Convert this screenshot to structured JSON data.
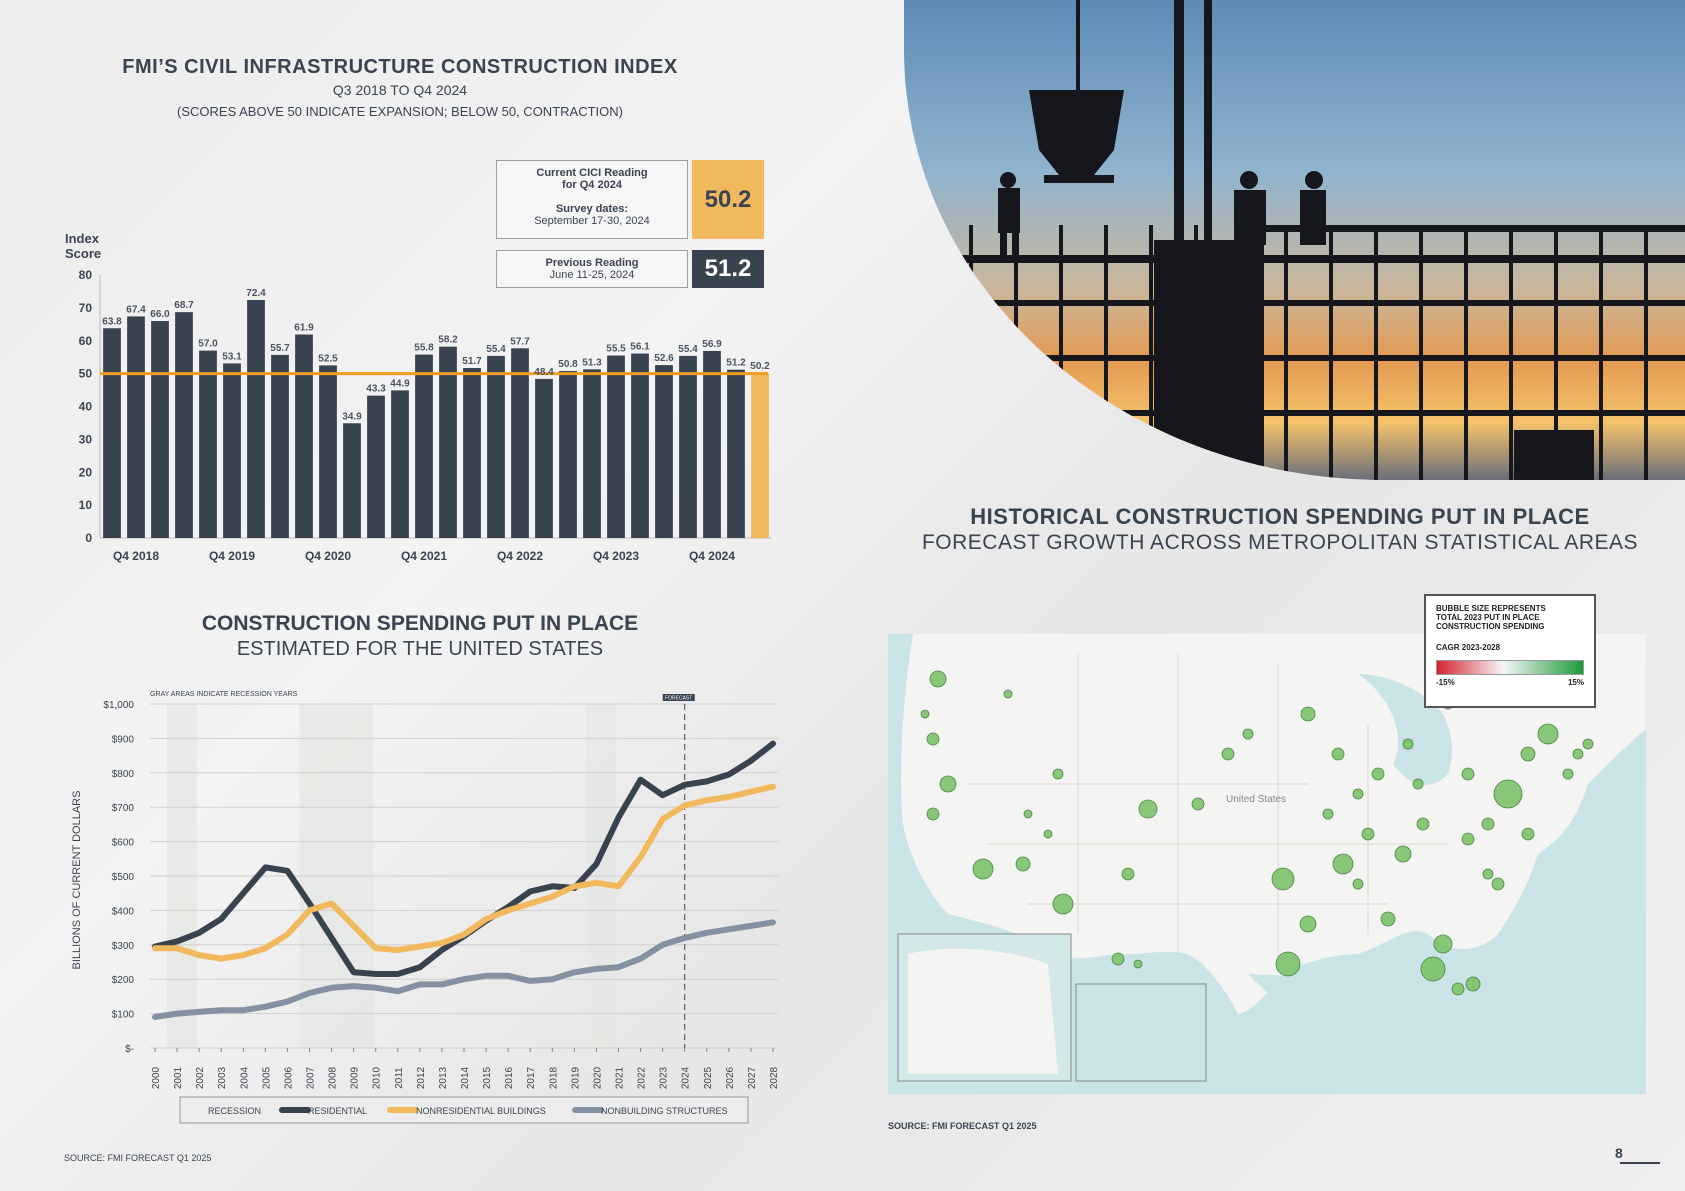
{
  "cici": {
    "title": "FMI’S CIVIL INFRASTRUCTURE CONSTRUCTION INDEX",
    "subtitle": "Q3 2018 TO Q4 2024",
    "note": "(SCORES ABOVE 50 INDICATE EXPANSION; BELOW 50, CONTRACTION)",
    "current": {
      "label_line1": "Current CICI Reading",
      "label_line2": "for Q4 2024",
      "survey_label": "Survey dates:",
      "survey_dates": "September 17-30, 2024",
      "value": "50.2"
    },
    "previous": {
      "label": "Previous Reading",
      "dates": "June 11-25, 2024",
      "value": "51.2"
    }
  },
  "historical": {
    "title": "HISTORICAL CONSTRUCTION SPENDING PUT IN PLACE",
    "subtitle": "FORECAST GROWTH ACROSS METROPOLITAN STATISTICAL AREAS"
  },
  "spending": {
    "title": "CONSTRUCTION SPENDING PUT IN PLACE",
    "subtitle": "ESTIMATED FOR THE UNITED STATES"
  },
  "map": {
    "legend_line1": "BUBBLE SIZE REPRESENTS",
    "legend_line2": "TOTAL 2023 PUT IN PLACE",
    "legend_line3": "CONSTRUCTION SPENDING",
    "cagr_label": "CAGR 2023-2028",
    "min_label": "-15%",
    "max_label": "15%",
    "country_label": "United States",
    "colors": {
      "water": "#c9e3e6",
      "land": "#f4f4f2",
      "bubble": "#7cc36a"
    }
  },
  "sources": {
    "left": "SOURCE: FMI FORECAST Q1 2025",
    "map": "SOURCE: FMI FORECAST Q1 2025"
  },
  "page_number": "8",
  "chart_data": [
    {
      "type": "bar",
      "ylabel": "Index Score",
      "ylim": [
        0,
        80
      ],
      "yticks": [
        0,
        10,
        20,
        30,
        40,
        50,
        60,
        70,
        80
      ],
      "x_tick_labels": [
        "Q4 2018",
        "Q4 2019",
        "Q4 2020",
        "Q4 2021",
        "Q4 2022",
        "Q4 2023",
        "Q4 2024"
      ],
      "x_tick_indices": [
        1,
        5,
        9,
        13,
        17,
        21,
        25
      ],
      "values": [
        63.8,
        67.4,
        66.0,
        68.7,
        57.0,
        53.1,
        72.4,
        55.7,
        61.9,
        52.5,
        34.9,
        43.3,
        44.9,
        55.8,
        58.2,
        51.7,
        55.4,
        57.7,
        48.4,
        50.8,
        51.3,
        55.5,
        56.1,
        52.6,
        55.4,
        56.9,
        51.2,
        50.2
      ],
      "highlight_index": 27,
      "reference_line": 50,
      "colors": {
        "bar": "#394350",
        "highlight": "#f2b85e",
        "reference": "#f39c1f"
      },
      "grid": false
    },
    {
      "type": "line",
      "note": "GRAY AREAS INDICATE RECESSION YEARS",
      "forecast_label": "FORECAST",
      "ylabel": "BILLIONS OF CURRENT DOLLARS",
      "ylim": [
        0,
        1000
      ],
      "y_tick_labels": [
        "$-",
        "$100",
        "$200",
        "$300",
        "$400",
        "$500",
        "$600",
        "$700",
        "$800",
        "$900",
        "$1,000"
      ],
      "x": [
        2000,
        2001,
        2002,
        2003,
        2004,
        2005,
        2006,
        2007,
        2008,
        2009,
        2010,
        2011,
        2012,
        2013,
        2014,
        2015,
        2016,
        2017,
        2018,
        2019,
        2020,
        2021,
        2022,
        2023,
        2024,
        2025,
        2026,
        2027,
        2028
      ],
      "recession_years": [
        [
          2001,
          2001.9
        ],
        [
          2007,
          2009.9
        ],
        [
          2020,
          2020.9
        ]
      ],
      "forecast_start": 2024,
      "series": [
        {
          "name": "RESIDENTIAL",
          "color": "#394350",
          "values": [
            295,
            310,
            335,
            375,
            450,
            525,
            515,
            420,
            320,
            220,
            215,
            215,
            235,
            285,
            325,
            370,
            410,
            455,
            470,
            465,
            535,
            670,
            780,
            735,
            765,
            775,
            795,
            835,
            885
          ]
        },
        {
          "name": "NONRESIDENTIAL BUILDINGS",
          "color": "#f2b85e",
          "values": [
            290,
            290,
            270,
            260,
            270,
            290,
            330,
            400,
            420,
            355,
            290,
            285,
            295,
            305,
            330,
            375,
            400,
            420,
            440,
            470,
            480,
            470,
            555,
            665,
            705,
            720,
            730,
            745,
            760
          ]
        },
        {
          "name": "NONBUILDING STRUCTURES",
          "color": "#8391a0",
          "values": [
            90,
            100,
            105,
            110,
            110,
            120,
            135,
            160,
            175,
            180,
            175,
            165,
            185,
            185,
            200,
            210,
            210,
            195,
            200,
            220,
            230,
            235,
            260,
            300,
            320,
            335,
            345,
            355,
            365
          ]
        }
      ],
      "legend": [
        "RECESSION",
        "RESIDENTIAL",
        "NONRESIDENTIAL BUILDINGS",
        "NONBUILDING STRUCTURES"
      ]
    }
  ]
}
